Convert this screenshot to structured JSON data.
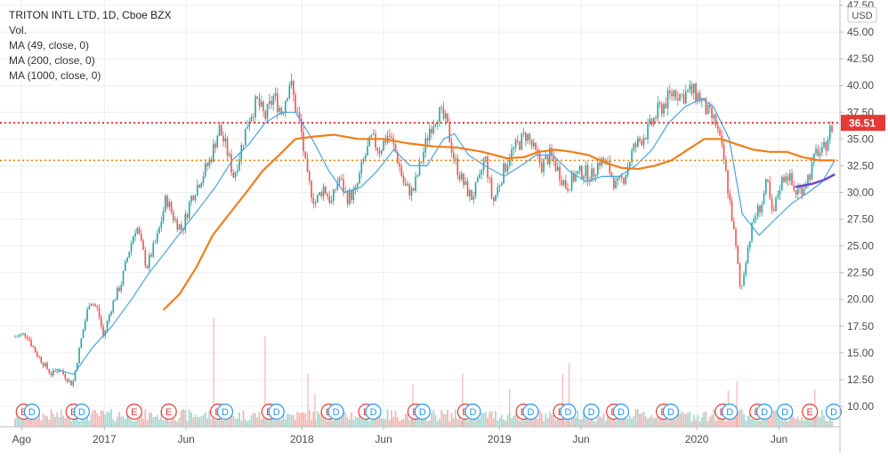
{
  "chart_data": {
    "type": "candlestick",
    "legend": {
      "title": "TRITON INTL LTD, 1D, Cboe BZX",
      "volume": "Vol.",
      "ma_lines": [
        "MA (49, close, 0)",
        "MA (200, close, 0)",
        "MA (1000, close, 0)"
      ]
    },
    "currency": "USD",
    "last_price": "36.51",
    "y_axis": {
      "min": 9.0,
      "max": 47.5,
      "ticks": [
        "10.00",
        "12.50",
        "15.00",
        "17.50",
        "20.00",
        "22.50",
        "25.00",
        "27.50",
        "30.00",
        "32.50",
        "35.00",
        "37.50",
        "40.00",
        "42.50",
        "45.00",
        "47.50"
      ]
    },
    "x_axis": {
      "start": "2016-07-15",
      "end": "2020-09-15",
      "labels": [
        {
          "text": "Ago",
          "date": "2016-08-01"
        },
        {
          "text": "2017",
          "date": "2017-01-01"
        },
        {
          "text": "Jun",
          "date": "2017-06-01"
        },
        {
          "text": "2018",
          "date": "2018-01-01"
        },
        {
          "text": "Jun",
          "date": "2018-06-01"
        },
        {
          "text": "2019",
          "date": "2019-01-01"
        },
        {
          "text": "Jun",
          "date": "2019-06-01"
        },
        {
          "text": "2020",
          "date": "2020-01-01"
        },
        {
          "text": "Jun",
          "date": "2020-06-01"
        }
      ]
    },
    "price_path": [
      [
        "2016-07-20",
        16.5
      ],
      [
        "2016-08-10",
        16.8
      ],
      [
        "2016-08-25",
        15.2
      ],
      [
        "2016-09-10",
        14.0
      ],
      [
        "2016-09-25",
        13.0
      ],
      [
        "2016-10-10",
        13.5
      ],
      [
        "2016-10-25",
        12.5
      ],
      [
        "2016-11-03",
        12.0
      ],
      [
        "2016-11-20",
        16.5
      ],
      [
        "2016-12-05",
        20.0
      ],
      [
        "2016-12-20",
        19.0
      ],
      [
        "2016-12-30",
        16.5
      ],
      [
        "2017-01-15",
        19.5
      ],
      [
        "2017-02-01",
        21.5
      ],
      [
        "2017-02-15",
        24.5
      ],
      [
        "2017-03-01",
        27.0
      ],
      [
        "2017-03-20",
        23.0
      ],
      [
        "2017-04-10",
        26.0
      ],
      [
        "2017-04-25",
        29.5
      ],
      [
        "2017-05-10",
        27.5
      ],
      [
        "2017-05-25",
        26.5
      ],
      [
        "2017-06-10",
        29.5
      ],
      [
        "2017-06-25",
        31.0
      ],
      [
        "2017-07-15",
        33.0
      ],
      [
        "2017-08-01",
        36.0
      ],
      [
        "2017-08-15",
        34.0
      ],
      [
        "2017-08-28",
        31.5
      ],
      [
        "2017-09-10",
        34.0
      ],
      [
        "2017-09-25",
        37.0
      ],
      [
        "2017-10-10",
        38.5
      ],
      [
        "2017-10-25",
        37.0
      ],
      [
        "2017-11-10",
        39.0
      ],
      [
        "2017-11-25",
        37.5
      ],
      [
        "2017-12-10",
        40.5
      ],
      [
        "2017-12-20",
        38.0
      ],
      [
        "2017-12-30",
        36.0
      ],
      [
        "2018-01-10",
        31.5
      ],
      [
        "2018-01-25",
        29.0
      ],
      [
        "2018-02-10",
        30.5
      ],
      [
        "2018-02-25",
        29.0
      ],
      [
        "2018-03-10",
        31.5
      ],
      [
        "2018-03-25",
        29.5
      ],
      [
        "2018-04-10",
        30.0
      ],
      [
        "2018-04-25",
        33.0
      ],
      [
        "2018-05-10",
        35.0
      ],
      [
        "2018-05-25",
        34.0
      ],
      [
        "2018-06-10",
        35.5
      ],
      [
        "2018-06-25",
        33.5
      ],
      [
        "2018-07-10",
        30.5
      ],
      [
        "2018-07-25",
        30.0
      ],
      [
        "2018-08-10",
        33.0
      ],
      [
        "2018-08-25",
        36.0
      ],
      [
        "2018-09-10",
        37.5
      ],
      [
        "2018-09-25",
        36.5
      ],
      [
        "2018-10-10",
        33.0
      ],
      [
        "2018-10-25",
        31.0
      ],
      [
        "2018-11-10",
        29.5
      ],
      [
        "2018-11-25",
        31.0
      ],
      [
        "2018-12-05",
        33.5
      ],
      [
        "2018-12-20",
        29.0
      ],
      [
        "2019-01-05",
        31.5
      ],
      [
        "2019-01-20",
        33.5
      ],
      [
        "2019-02-05",
        34.5
      ],
      [
        "2019-02-20",
        35.5
      ],
      [
        "2019-03-05",
        34.0
      ],
      [
        "2019-03-20",
        32.5
      ],
      [
        "2019-04-05",
        33.5
      ],
      [
        "2019-04-20",
        32.0
      ],
      [
        "2019-05-05",
        30.5
      ],
      [
        "2019-05-20",
        31.5
      ],
      [
        "2019-06-05",
        32.0
      ],
      [
        "2019-06-20",
        31.5
      ],
      [
        "2019-07-05",
        33.0
      ],
      [
        "2019-07-20",
        32.5
      ],
      [
        "2019-08-05",
        30.5
      ],
      [
        "2019-08-20",
        31.5
      ],
      [
        "2019-09-05",
        34.0
      ],
      [
        "2019-09-20",
        35.0
      ],
      [
        "2019-10-05",
        36.0
      ],
      [
        "2019-10-20",
        37.5
      ],
      [
        "2019-11-05",
        38.5
      ],
      [
        "2019-11-20",
        39.5
      ],
      [
        "2019-12-05",
        39.0
      ],
      [
        "2019-12-20",
        39.5
      ],
      [
        "2020-01-05",
        39.0
      ],
      [
        "2020-01-20",
        37.5
      ],
      [
        "2020-02-05",
        36.5
      ],
      [
        "2020-02-20",
        33.0
      ],
      [
        "2020-03-05",
        28.0
      ],
      [
        "2020-03-15",
        24.0
      ],
      [
        "2020-03-22",
        20.5
      ],
      [
        "2020-04-01",
        24.0
      ],
      [
        "2020-04-15",
        27.5
      ],
      [
        "2020-04-30",
        29.0
      ],
      [
        "2020-05-10",
        31.0
      ],
      [
        "2020-05-20",
        27.5
      ],
      [
        "2020-06-01",
        30.5
      ],
      [
        "2020-06-15",
        32.0
      ],
      [
        "2020-06-30",
        30.0
      ],
      [
        "2020-07-15",
        30.5
      ],
      [
        "2020-07-30",
        32.0
      ],
      [
        "2020-08-10",
        34.0
      ],
      [
        "2020-08-20",
        33.5
      ],
      [
        "2020-09-01",
        35.5
      ],
      [
        "2020-09-10",
        36.5
      ]
    ],
    "ma_series": [
      {
        "label": "MA (49, close, 0)",
        "color": "#4aa3df",
        "width": 1.2,
        "points": [
          [
            "2016-10-01",
            13.5
          ],
          [
            "2016-11-05",
            13.0
          ],
          [
            "2016-12-10",
            15.5
          ],
          [
            "2017-01-15",
            17.5
          ],
          [
            "2017-02-20",
            20.0
          ],
          [
            "2017-03-25",
            22.5
          ],
          [
            "2017-04-25",
            24.5
          ],
          [
            "2017-05-25",
            26.5
          ],
          [
            "2017-06-25",
            28.5
          ],
          [
            "2017-07-25",
            30.5
          ],
          [
            "2017-08-25",
            33.0
          ],
          [
            "2017-09-25",
            34.5
          ],
          [
            "2017-10-25",
            36.5
          ],
          [
            "2017-11-25",
            37.5
          ],
          [
            "2017-12-20",
            37.5
          ],
          [
            "2018-01-20",
            35.0
          ],
          [
            "2018-02-20",
            32.0
          ],
          [
            "2018-03-20",
            30.0
          ],
          [
            "2018-04-20",
            30.5
          ],
          [
            "2018-05-20",
            32.0
          ],
          [
            "2018-06-20",
            34.0
          ],
          [
            "2018-07-20",
            32.5
          ],
          [
            "2018-08-20",
            32.5
          ],
          [
            "2018-09-20",
            35.0
          ],
          [
            "2018-10-10",
            35.5
          ],
          [
            "2018-11-05",
            33.5
          ],
          [
            "2018-12-05",
            32.5
          ],
          [
            "2019-01-10",
            31.5
          ],
          [
            "2019-02-10",
            32.5
          ],
          [
            "2019-03-10",
            33.5
          ],
          [
            "2019-04-10",
            33.5
          ],
          [
            "2019-05-10",
            32.0
          ],
          [
            "2019-06-10",
            31.0
          ],
          [
            "2019-07-10",
            31.5
          ],
          [
            "2019-08-10",
            31.5
          ],
          [
            "2019-09-10",
            32.5
          ],
          [
            "2019-10-10",
            34.0
          ],
          [
            "2019-11-10",
            36.5
          ],
          [
            "2019-12-10",
            38.0
          ],
          [
            "2020-01-10",
            38.8
          ],
          [
            "2020-02-01",
            38.0
          ],
          [
            "2020-03-01",
            35.0
          ],
          [
            "2020-03-25",
            28.0
          ],
          [
            "2020-04-25",
            26.0
          ],
          [
            "2020-05-25",
            27.5
          ],
          [
            "2020-06-25",
            29.0
          ],
          [
            "2020-07-25",
            30.0
          ],
          [
            "2020-08-20",
            31.0
          ],
          [
            "2020-09-12",
            33.0
          ]
        ]
      },
      {
        "label": "MA (200, close, 0)",
        "color": "#f07e1b",
        "width": 2.2,
        "points": [
          [
            "2017-04-20",
            19.0
          ],
          [
            "2017-05-20",
            20.5
          ],
          [
            "2017-06-20",
            23.0
          ],
          [
            "2017-07-20",
            26.0
          ],
          [
            "2017-08-20",
            28.0
          ],
          [
            "2017-09-20",
            30.0
          ],
          [
            "2017-10-20",
            32.0
          ],
          [
            "2017-11-20",
            33.5
          ],
          [
            "2017-12-20",
            35.0
          ],
          [
            "2018-01-20",
            35.2
          ],
          [
            "2018-03-01",
            35.4
          ],
          [
            "2018-04-15",
            35.0
          ],
          [
            "2018-06-01",
            35.0
          ],
          [
            "2018-07-15",
            34.6
          ],
          [
            "2018-09-01",
            34.3
          ],
          [
            "2018-10-15",
            34.2
          ],
          [
            "2018-12-01",
            33.8
          ],
          [
            "2019-01-15",
            33.2
          ],
          [
            "2019-02-15",
            33.3
          ],
          [
            "2019-03-15",
            33.8
          ],
          [
            "2019-04-15",
            34.0
          ],
          [
            "2019-05-15",
            33.8
          ],
          [
            "2019-06-15",
            33.5
          ],
          [
            "2019-07-15",
            32.8
          ],
          [
            "2019-08-15",
            32.3
          ],
          [
            "2019-09-15",
            32.2
          ],
          [
            "2019-10-15",
            32.5
          ],
          [
            "2019-11-15",
            33.0
          ],
          [
            "2019-12-15",
            34.0
          ],
          [
            "2020-01-15",
            35.0
          ],
          [
            "2020-02-15",
            35.0
          ],
          [
            "2020-03-15",
            34.5
          ],
          [
            "2020-04-15",
            34.0
          ],
          [
            "2020-05-15",
            33.8
          ],
          [
            "2020-06-15",
            33.8
          ],
          [
            "2020-07-15",
            33.3
          ],
          [
            "2020-08-15",
            33.0
          ],
          [
            "2020-09-12",
            33.0
          ]
        ]
      },
      {
        "label": "MA (1000, close, 0)",
        "color": "#6f46c9",
        "width": 2.5,
        "points": [
          [
            "2020-07-01",
            30.5
          ],
          [
            "2020-08-01",
            30.8
          ],
          [
            "2020-08-25",
            31.2
          ],
          [
            "2020-09-12",
            31.7
          ]
        ]
      }
    ],
    "horizontal_lines": [
      {
        "value": 36.51,
        "color": "#e53935",
        "dash": "2,3",
        "width": 2
      },
      {
        "value": 33.0,
        "color": "#f57c00",
        "dash": "2,3",
        "width": 1.5
      }
    ],
    "volume_spikes": [
      [
        "2017-07-22",
        0.72
      ],
      [
        "2017-10-25",
        0.6
      ],
      [
        "2018-01-12",
        0.35
      ],
      [
        "2018-01-25",
        0.22
      ],
      [
        "2018-07-25",
        0.28
      ],
      [
        "2018-10-25",
        0.35
      ],
      [
        "2019-01-20",
        0.25
      ],
      [
        "2019-04-28",
        0.35
      ],
      [
        "2019-05-10",
        0.42
      ],
      [
        "2020-02-28",
        0.24
      ],
      [
        "2020-03-15",
        0.3
      ],
      [
        "2020-08-06",
        0.25
      ]
    ],
    "events": [
      {
        "type": "E",
        "date": "2016-08-05"
      },
      {
        "type": "D",
        "date": "2016-08-20"
      },
      {
        "type": "E",
        "date": "2016-11-05"
      },
      {
        "type": "D",
        "date": "2016-11-20"
      },
      {
        "type": "E",
        "date": "2017-02-25"
      },
      {
        "type": "E",
        "date": "2017-04-30"
      },
      {
        "type": "E",
        "date": "2017-07-30"
      },
      {
        "type": "D",
        "date": "2017-08-12"
      },
      {
        "type": "E",
        "date": "2017-11-02"
      },
      {
        "type": "D",
        "date": "2017-11-15"
      },
      {
        "type": "E",
        "date": "2018-02-20"
      },
      {
        "type": "D",
        "date": "2018-03-05"
      },
      {
        "type": "E",
        "date": "2018-04-30"
      },
      {
        "type": "D",
        "date": "2018-05-13"
      },
      {
        "type": "E",
        "date": "2018-07-30"
      },
      {
        "type": "D",
        "date": "2018-08-12"
      },
      {
        "type": "E",
        "date": "2018-10-30"
      },
      {
        "type": "D",
        "date": "2018-11-13"
      },
      {
        "type": "E",
        "date": "2019-02-15"
      },
      {
        "type": "D",
        "date": "2019-02-28"
      },
      {
        "type": "E",
        "date": "2019-04-25"
      },
      {
        "type": "D",
        "date": "2019-05-08"
      },
      {
        "type": "D",
        "date": "2019-06-20"
      },
      {
        "type": "E",
        "date": "2019-08-01"
      },
      {
        "type": "D",
        "date": "2019-08-14"
      },
      {
        "type": "E",
        "date": "2019-11-01"
      },
      {
        "type": "D",
        "date": "2019-11-14"
      },
      {
        "type": "E",
        "date": "2020-02-18"
      },
      {
        "type": "D",
        "date": "2020-03-02"
      },
      {
        "type": "E",
        "date": "2020-04-22"
      },
      {
        "type": "D",
        "date": "2020-05-05"
      },
      {
        "type": "D",
        "date": "2020-06-12"
      },
      {
        "type": "E",
        "date": "2020-07-28"
      },
      {
        "type": "D",
        "date": "2020-09-10"
      }
    ],
    "colors": {
      "up": "#26a69a",
      "down": "#ef5350",
      "volume_up": "#a8d8d0",
      "volume_down": "#f5b6b3",
      "grid": "#eceff2",
      "axis_text": "#4a4a4a",
      "earnings": "#e53935",
      "dividend": "#2196f3"
    }
  }
}
